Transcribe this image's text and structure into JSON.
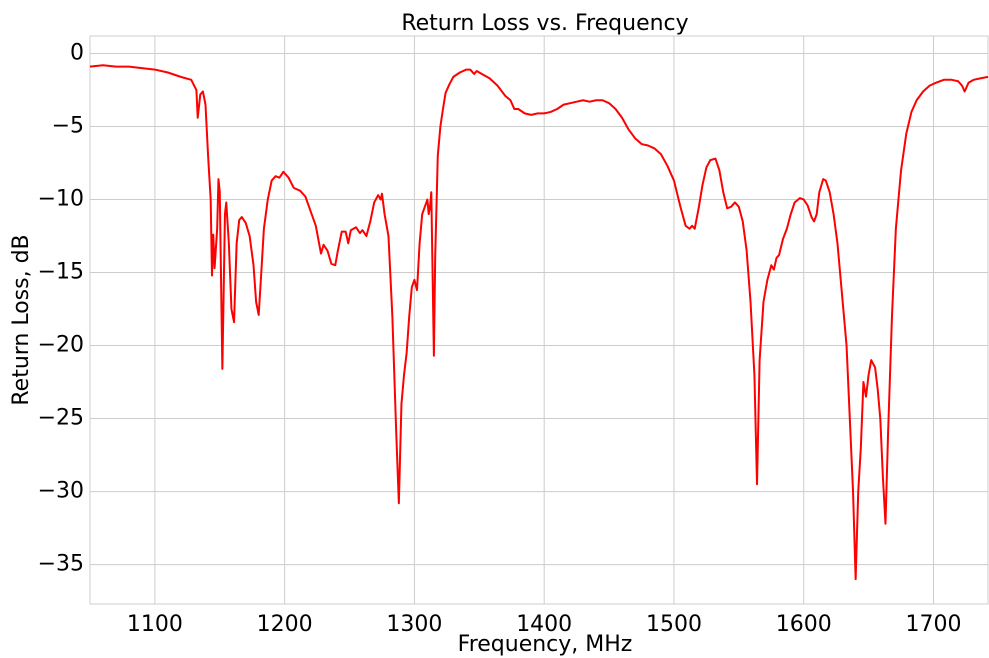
{
  "chart_data": {
    "type": "line",
    "title": "Return Loss vs. Frequency",
    "xlabel": "Frequency, MHz",
    "ylabel": "Return Loss, dB",
    "color": "#ff0000",
    "grid": true,
    "xlim": [
      1050,
      1742
    ],
    "ylim": [
      -37.7,
      1.2
    ],
    "xticks": [
      1100,
      1200,
      1300,
      1400,
      1500,
      1600,
      1700
    ],
    "yticks": [
      0,
      {
        "value": -5,
        "label": "−5"
      },
      {
        "value": -10,
        "label": "−10"
      },
      {
        "value": -15,
        "label": "−15"
      },
      {
        "value": -20,
        "label": "−20"
      },
      {
        "value": -25,
        "label": "−25"
      },
      {
        "value": -30,
        "label": "−30"
      },
      {
        "value": -35,
        "label": "−35"
      }
    ],
    "x": [
      1050,
      1060,
      1070,
      1080,
      1090,
      1100,
      1110,
      1120,
      1128,
      1132,
      1133,
      1135,
      1137,
      1139,
      1141,
      1143,
      1144,
      1145,
      1146,
      1148,
      1149,
      1150,
      1152,
      1154,
      1155,
      1157,
      1159,
      1161,
      1163,
      1165,
      1167,
      1170,
      1173,
      1176,
      1178,
      1180,
      1182,
      1184,
      1187,
      1190,
      1193,
      1196,
      1199,
      1203,
      1207,
      1212,
      1216,
      1220,
      1224,
      1228,
      1230,
      1233,
      1236,
      1239,
      1241,
      1244,
      1247,
      1249,
      1251,
      1255,
      1258,
      1260,
      1263,
      1266,
      1269,
      1272,
      1274,
      1275,
      1277,
      1280,
      1283,
      1286,
      1288,
      1290,
      1292,
      1294,
      1296,
      1298,
      1300,
      1302,
      1304,
      1306,
      1308,
      1310,
      1311,
      1312,
      1313,
      1315,
      1316,
      1318,
      1320,
      1322,
      1324,
      1327,
      1330,
      1335,
      1340,
      1343,
      1346,
      1348,
      1352,
      1358,
      1364,
      1370,
      1374,
      1377,
      1380,
      1385,
      1390,
      1395,
      1400,
      1405,
      1410,
      1415,
      1420,
      1425,
      1430,
      1435,
      1440,
      1445,
      1450,
      1455,
      1460,
      1465,
      1470,
      1475,
      1480,
      1485,
      1490,
      1495,
      1500,
      1505,
      1509,
      1512,
      1514,
      1516,
      1519,
      1522,
      1525,
      1528,
      1532,
      1535,
      1538,
      1541,
      1544,
      1547,
      1550,
      1553,
      1556,
      1559,
      1562,
      1564,
      1566,
      1569,
      1572,
      1575,
      1577,
      1579,
      1581,
      1584,
      1587,
      1590,
      1593,
      1597,
      1600,
      1603,
      1606,
      1608,
      1610,
      1612,
      1615,
      1617,
      1620,
      1623,
      1626,
      1629,
      1633,
      1636,
      1638,
      1640,
      1642,
      1644,
      1646,
      1648,
      1650,
      1652,
      1655,
      1657,
      1659,
      1661,
      1663,
      1665,
      1668,
      1671,
      1675,
      1679,
      1683,
      1687,
      1692,
      1697,
      1702,
      1708,
      1714,
      1719,
      1722,
      1724,
      1727,
      1731,
      1736,
      1742
    ],
    "values": [
      -0.9,
      -0.8,
      -0.9,
      -0.9,
      -1.0,
      -1.1,
      -1.3,
      -1.6,
      -1.8,
      -2.5,
      -4.4,
      -2.8,
      -2.6,
      -3.5,
      -7,
      -10,
      -15.2,
      -12.4,
      -14.7,
      -12,
      -8.6,
      -9.5,
      -21.6,
      -11,
      -10.2,
      -13,
      -17.5,
      -18.4,
      -13,
      -11.4,
      -11.2,
      -11.6,
      -12.5,
      -14.5,
      -17,
      -17.9,
      -15,
      -12,
      -10,
      -8.7,
      -8.4,
      -8.5,
      -8.1,
      -8.5,
      -9.2,
      -9.4,
      -9.8,
      -10.8,
      -11.8,
      -13.7,
      -13.1,
      -13.5,
      -14.4,
      -14.5,
      -13.5,
      -12.2,
      -12.2,
      -13,
      -12.1,
      -11.9,
      -12.3,
      -12.1,
      -12.5,
      -11.5,
      -10.2,
      -9.7,
      -10,
      -9.6,
      -11,
      -12.5,
      -18,
      -26,
      -30.8,
      -24,
      -22,
      -20.5,
      -18,
      -16,
      -15.5,
      -16.2,
      -13,
      -11,
      -10.5,
      -10,
      -11,
      -10.5,
      -9.5,
      -20.7,
      -14,
      -7,
      -5,
      -3.8,
      -2.7,
      -2.1,
      -1.6,
      -1.3,
      -1.1,
      -1.1,
      -1.4,
      -1.2,
      -1.4,
      -1.7,
      -2.2,
      -2.9,
      -3.2,
      -3.8,
      -3.8,
      -4.1,
      -4.2,
      -4.1,
      -4.1,
      -4.0,
      -3.8,
      -3.5,
      -3.4,
      -3.3,
      -3.2,
      -3.3,
      -3.2,
      -3.2,
      -3.4,
      -3.8,
      -4.4,
      -5.2,
      -5.8,
      -6.2,
      -6.3,
      -6.5,
      -6.9,
      -7.7,
      -8.7,
      -10.5,
      -11.8,
      -12,
      -11.8,
      -12,
      -10.6,
      -9,
      -7.8,
      -7.3,
      -7.2,
      -8,
      -9.5,
      -10.6,
      -10.5,
      -10.2,
      -10.5,
      -11.5,
      -13.5,
      -17,
      -22,
      -29.5,
      -21,
      -17,
      -15.5,
      -14.5,
      -14.8,
      -14,
      -13.8,
      -12.7,
      -12,
      -11,
      -10.2,
      -9.9,
      -10,
      -10.4,
      -11.2,
      -11.5,
      -11,
      -9.5,
      -8.6,
      -8.7,
      -9.5,
      -11,
      -13,
      -16,
      -20,
      -26,
      -30,
      -36,
      -30,
      -27,
      -22.5,
      -23.5,
      -22,
      -21,
      -21.5,
      -23,
      -25,
      -29,
      -32.2,
      -26,
      -18,
      -12,
      -8,
      -5.5,
      -4,
      -3.2,
      -2.6,
      -2.2,
      -2.0,
      -1.8,
      -1.8,
      -1.9,
      -2.2,
      -2.6,
      -2.0,
      -1.8,
      -1.7,
      -1.6
    ]
  }
}
